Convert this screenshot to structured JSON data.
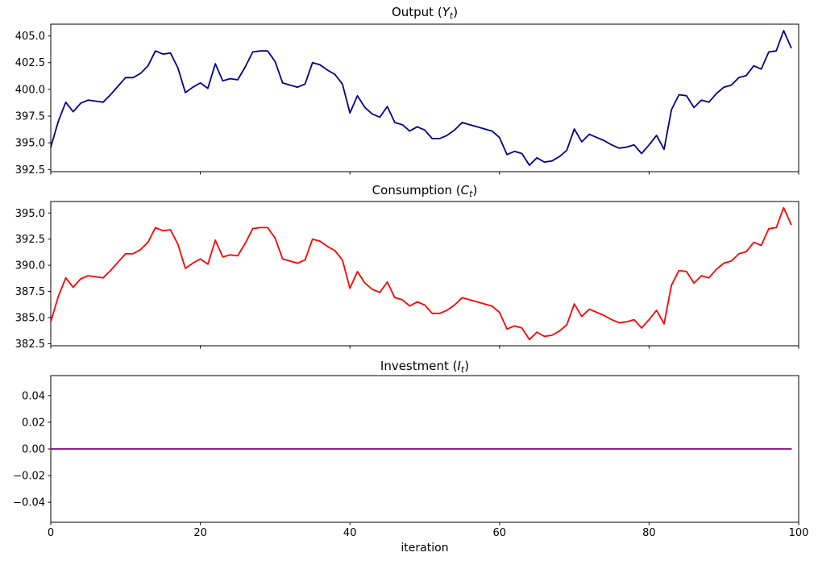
{
  "figure": {
    "xlabel": "iteration"
  },
  "chart_data": [
    {
      "id": "output",
      "type": "line",
      "title": "Output (Y_t)",
      "title_parts": {
        "prefix": "Output (",
        "var": "Y",
        "sub": "t",
        "suffix": ")"
      },
      "line_color": "#00008b",
      "xlabel": "",
      "ylabel": "",
      "xlim": [
        0,
        100
      ],
      "ylim": [
        392.3,
        406.1
      ],
      "xticks": [
        0,
        20,
        40,
        60,
        80,
        100
      ],
      "yticks": [
        405.0,
        402.5,
        400.0,
        397.5,
        395.0,
        392.5
      ],
      "ytick_labels": [
        "405.0",
        "402.5",
        "400.0",
        "397.5",
        "395.0",
        "392.5"
      ],
      "grid": false,
      "legend": "none",
      "x": {
        "start": 0,
        "step": 1,
        "count": 100
      },
      "values": [
        394.6,
        397.0,
        398.8,
        397.9,
        398.7,
        399.0,
        398.9,
        398.8,
        399.5,
        400.3,
        401.1,
        401.1,
        401.5,
        402.2,
        403.6,
        403.3,
        403.4,
        402.0,
        399.7,
        400.2,
        400.6,
        400.1,
        402.4,
        400.8,
        401.0,
        400.9,
        402.1,
        403.5,
        403.6,
        403.6,
        402.6,
        400.6,
        400.4,
        400.2,
        400.5,
        402.5,
        402.3,
        401.8,
        401.4,
        400.5,
        397.8,
        399.4,
        398.3,
        397.7,
        397.4,
        398.4,
        396.9,
        396.7,
        396.1,
        396.5,
        396.2,
        395.4,
        395.4,
        395.7,
        396.2,
        396.9,
        396.7,
        396.5,
        396.3,
        396.1,
        395.5,
        393.9,
        394.2,
        394.0,
        392.9,
        393.6,
        393.2,
        393.3,
        393.7,
        394.3,
        396.3,
        395.1,
        395.8,
        395.5,
        395.2,
        394.8,
        394.5,
        394.6,
        394.8,
        394.0,
        394.8,
        395.7,
        394.4,
        398.1,
        399.5,
        399.4,
        398.3,
        399.0,
        398.8,
        399.6,
        400.2,
        400.4,
        401.1,
        401.3,
        402.2,
        401.9,
        403.5,
        403.6,
        405.5,
        403.9
      ]
    },
    {
      "id": "consumption",
      "type": "line",
      "title": "Consumption (C_t)",
      "title_parts": {
        "prefix": "Consumption (",
        "var": "C",
        "sub": "t",
        "suffix": ")"
      },
      "line_color": "#ff0000",
      "xlabel": "",
      "ylabel": "",
      "xlim": [
        0,
        100
      ],
      "ylim": [
        382.3,
        396.1
      ],
      "xticks": [
        0,
        20,
        40,
        60,
        80,
        100
      ],
      "yticks": [
        395.0,
        392.5,
        390.0,
        387.5,
        385.0,
        382.5
      ],
      "ytick_labels": [
        "395.0",
        "392.5",
        "390.0",
        "387.5",
        "385.0",
        "382.5"
      ],
      "grid": false,
      "legend": "none",
      "x": {
        "start": 0,
        "step": 1,
        "count": 100
      },
      "values": [
        384.6,
        387.0,
        388.8,
        387.9,
        388.7,
        389.0,
        388.9,
        388.8,
        389.5,
        390.3,
        391.1,
        391.1,
        391.5,
        392.2,
        393.6,
        393.3,
        393.4,
        392.0,
        389.7,
        390.2,
        390.6,
        390.1,
        392.4,
        390.8,
        391.0,
        390.9,
        392.1,
        393.5,
        393.6,
        393.6,
        392.6,
        390.6,
        390.4,
        390.2,
        390.5,
        392.5,
        392.3,
        391.8,
        391.4,
        390.5,
        387.8,
        389.4,
        388.3,
        387.7,
        387.4,
        388.4,
        386.9,
        386.7,
        386.1,
        386.5,
        386.2,
        385.4,
        385.4,
        385.7,
        386.2,
        386.9,
        386.7,
        386.5,
        386.3,
        386.1,
        385.5,
        383.9,
        384.2,
        384.0,
        382.9,
        383.6,
        383.2,
        383.3,
        383.7,
        384.3,
        386.3,
        385.1,
        385.8,
        385.5,
        385.2,
        384.8,
        384.5,
        384.6,
        384.8,
        384.0,
        384.8,
        385.7,
        384.4,
        388.1,
        389.5,
        389.4,
        388.3,
        389.0,
        388.8,
        389.6,
        390.2,
        390.4,
        391.1,
        391.3,
        392.2,
        391.9,
        393.5,
        393.6,
        395.5,
        393.9
      ]
    },
    {
      "id": "investment",
      "type": "line",
      "title": "Investment (I_t)",
      "title_parts": {
        "prefix": "Investment (",
        "var": "I",
        "sub": "t",
        "suffix": ")"
      },
      "line_color": "#800080",
      "xlabel": "iteration",
      "ylabel": "",
      "xlim": [
        0,
        100
      ],
      "ylim": [
        -0.055,
        0.055
      ],
      "xticks": [
        0,
        20,
        40,
        60,
        80,
        100
      ],
      "xtick_labels": [
        "0",
        "20",
        "40",
        "60",
        "80",
        "100"
      ],
      "yticks": [
        0.04,
        0.02,
        0.0,
        -0.02,
        -0.04
      ],
      "ytick_labels": [
        "0.04",
        "0.02",
        "0.00",
        "−0.02",
        "−0.04"
      ],
      "grid": false,
      "legend": "none",
      "x": {
        "start": 0,
        "step": 1,
        "count": 100
      },
      "values": [
        0,
        0,
        0,
        0,
        0,
        0,
        0,
        0,
        0,
        0,
        0,
        0,
        0,
        0,
        0,
        0,
        0,
        0,
        0,
        0,
        0,
        0,
        0,
        0,
        0,
        0,
        0,
        0,
        0,
        0,
        0,
        0,
        0,
        0,
        0,
        0,
        0,
        0,
        0,
        0,
        0,
        0,
        0,
        0,
        0,
        0,
        0,
        0,
        0,
        0,
        0,
        0,
        0,
        0,
        0,
        0,
        0,
        0,
        0,
        0,
        0,
        0,
        0,
        0,
        0,
        0,
        0,
        0,
        0,
        0,
        0,
        0,
        0,
        0,
        0,
        0,
        0,
        0,
        0,
        0,
        0,
        0,
        0,
        0,
        0,
        0,
        0,
        0,
        0,
        0,
        0,
        0,
        0,
        0,
        0,
        0,
        0,
        0,
        0,
        0
      ]
    }
  ]
}
